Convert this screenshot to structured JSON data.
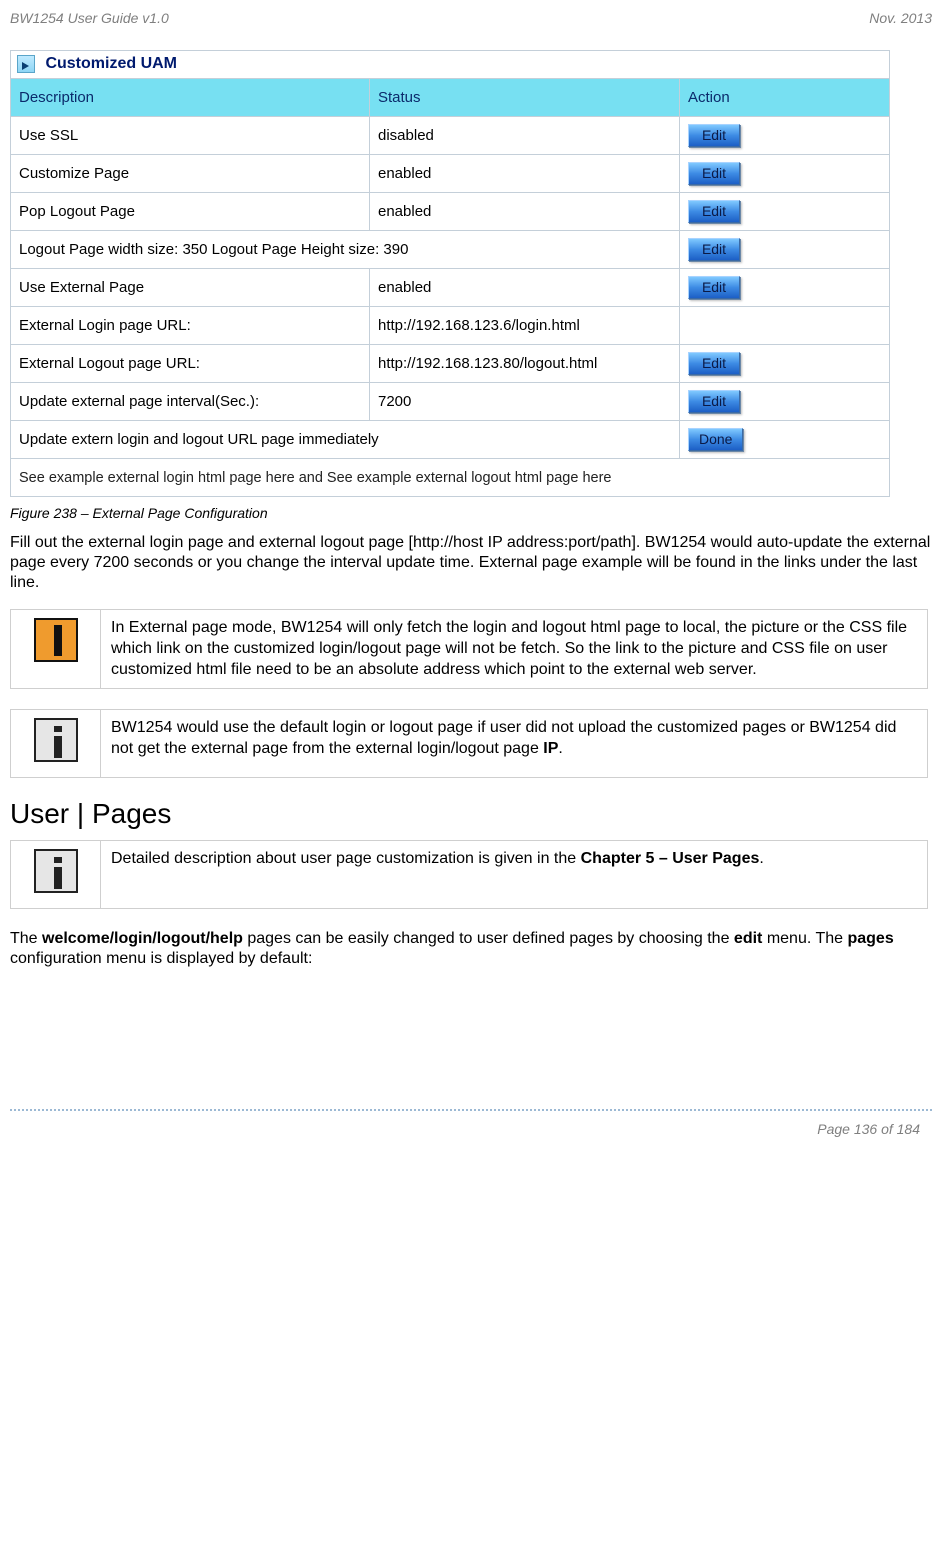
{
  "header": {
    "left": "BW1254 User Guide v1.0",
    "right": "Nov.  2013"
  },
  "cfg": {
    "panel_title": "Customized UAM",
    "columns": {
      "desc": "Description",
      "status": "Status",
      "action": "Action"
    },
    "rows": [
      {
        "desc": "Use SSL",
        "status": "disabled",
        "btn": "Edit"
      },
      {
        "desc": "Customize Page",
        "status": "enabled",
        "btn": "Edit"
      },
      {
        "desc": "Pop Logout Page",
        "status": "enabled",
        "btn": "Edit"
      },
      {
        "desc": "Logout Page width size: 350  Logout Page Height size: 390",
        "status": "",
        "btn": "Edit",
        "span": true
      },
      {
        "desc": "Use External Page",
        "status": "enabled",
        "btn": "Edit"
      },
      {
        "desc": "External Login page URL:",
        "status": "http://192.168.123.6/login.html",
        "btn": ""
      },
      {
        "desc": "External Logout page URL:",
        "status": "http://192.168.123.80/logout.html",
        "btn": "Edit"
      },
      {
        "desc": "Update external page interval(Sec.):",
        "status": "7200",
        "btn": "Edit"
      },
      {
        "desc": "Update extern login and logout URL page immediately",
        "status": "",
        "btn": "Done",
        "span": true
      }
    ],
    "footer": "See example external login html page here and See example external logout html page here"
  },
  "fig_caption": "Figure 238 – External Page Configuration",
  "para1": "Fill out the external login page and external logout page [http://host IP address:port/path]. BW1254 would auto-update the external page every 7200 seconds or you change the interval update time. External page example will be found in the links under the last line.",
  "warn_note": "In External page mode, BW1254 will only fetch the login and logout html page to local, the picture or the CSS file which link on the customized login/logout page will not be fetch. So the link to the picture and CSS file on user customized html file need to be an absolute address which point to the external web server.",
  "info_note1_a": "BW1254 would use the default login or logout page if user did not upload the customized pages or BW1254 did not get the external page from the external login/logout page ",
  "info_note1_b": "IP",
  "info_note1_c": ".",
  "section_heading": "User | Pages",
  "info_note2_a": "Detailed description about user page customization is given in the ",
  "info_note2_b": "Chapter 5 – User Pages",
  "info_note2_c": ".",
  "para2_a": "The ",
  "para2_b": "welcome/login/logout/help",
  "para2_c": " pages can be easily changed to user defined pages by choosing the ",
  "para2_d": "edit",
  "para2_e": " menu. The ",
  "para2_f": "pages",
  "para2_g": " configuration menu is displayed by default:",
  "footer": "Page 136 of 184"
}
